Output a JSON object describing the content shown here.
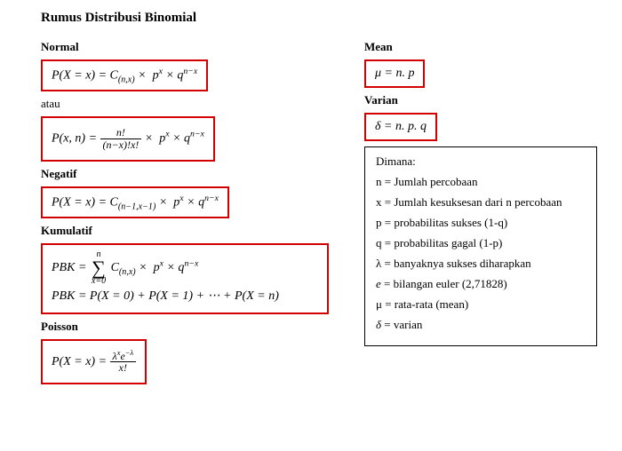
{
  "title": "Rumus Distribusi Binomial",
  "border_color": "#d40000",
  "text_color": "#000000",
  "background_color": "#ffffff",
  "info_border_color": "#000000",
  "left": {
    "normal": {
      "heading": "Normal",
      "formula_html": "P(X = x) = C<sub>(n,x)</sub> &times;&nbsp; p<sup>x</sup> &times; q<sup>n&minus;x</sup>"
    },
    "atau": "atau",
    "normal2": {
      "formula_html": "P(x, n) = <span class=\"frac\"><span class=\"num\">n!</span><span class=\"den\">(n&minus;x)!x!</span></span> &times;&nbsp; p<sup>x</sup> &times; q<sup>n&minus;x</sup>"
    },
    "negatif": {
      "heading": "Negatif",
      "formula_html": "P(X = x) = C<sub>(n&minus;1,x&minus;1)</sub> &times;&nbsp; p<sup>x</sup> &times; q<sup>n&minus;x</sup>"
    },
    "kumulatif": {
      "heading": "Kumulatif",
      "formula_html": "<div class=\"pbk-block\">PBK = <span class=\"sum\"><span class=\"top\">n</span><span class=\"sig\">&sum;</span><span class=\"bot\">x=0</span></span> C<sub>(n,x)</sub> &times;&nbsp; p<sup>x</sup> &times; q<sup>n&minus;x</sup><br>PBK = P(X = 0) + P(X = 1) + &ctdot; + P(X = n)</div>"
    },
    "poisson": {
      "heading": "Poisson",
      "formula_html": "P(X = x) = <span class=\"frac\"><span class=\"num\">&lambda;<sup>x</sup>e<sup>&minus;&lambda;</sup></span><span class=\"den\">x!</span></span>"
    }
  },
  "right": {
    "mean": {
      "heading": "Mean",
      "formula_html": "&mu; = n. p"
    },
    "varian": {
      "heading": "Varian",
      "formula_html": "&delta; = n. p. q"
    },
    "dimana": {
      "heading": "Dimana:",
      "rows": [
        "n = Jumlah percobaan",
        "x = Jumlah kesuksesan dari n percobaan",
        "p = probabilitas sukses (1-q)",
        "q = probabilitas gagal (1-p)",
        "λ = banyaknya sukses diharapkan",
        "<span class=\"italic-sym\">e</span> = bilangan euler (2,71828)",
        "μ = rata-rata (mean)",
        "<span class=\"italic-sym\">δ</span> = varian"
      ]
    }
  }
}
